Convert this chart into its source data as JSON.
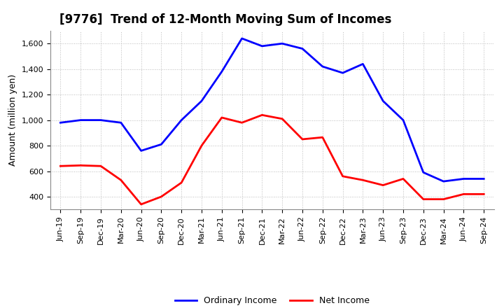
{
  "title": "[9776]  Trend of 12-Month Moving Sum of Incomes",
  "ylabel": "Amount (million yen)",
  "x_labels": [
    "Jun-19",
    "Sep-19",
    "Dec-19",
    "Mar-20",
    "Jun-20",
    "Sep-20",
    "Dec-20",
    "Mar-21",
    "Jun-21",
    "Sep-21",
    "Dec-21",
    "Mar-22",
    "Jun-22",
    "Sep-22",
    "Dec-22",
    "Mar-23",
    "Jun-23",
    "Sep-23",
    "Dec-23",
    "Mar-24",
    "Jun-24",
    "Sep-24"
  ],
  "ordinary_income": [
    980,
    1000,
    1000,
    980,
    760,
    810,
    1000,
    1150,
    1380,
    1640,
    1580,
    1600,
    1560,
    1420,
    1370,
    1440,
    1150,
    1000,
    590,
    520,
    540,
    540
  ],
  "net_income": [
    640,
    645,
    640,
    530,
    340,
    400,
    510,
    800,
    1020,
    980,
    1040,
    1010,
    850,
    865,
    560,
    530,
    490,
    540,
    380,
    380,
    420,
    420
  ],
  "ordinary_color": "#0000ff",
  "net_color": "#ff0000",
  "ylim_min": 300,
  "ylim_max": 1700,
  "yticks": [
    400,
    600,
    800,
    1000,
    1200,
    1400,
    1600
  ],
  "background_color": "#ffffff",
  "grid_color": "#bbbbbb",
  "title_fontsize": 12,
  "axis_label_fontsize": 9,
  "tick_fontsize": 8,
  "legend_labels": [
    "Ordinary Income",
    "Net Income"
  ],
  "line_width": 2.0
}
